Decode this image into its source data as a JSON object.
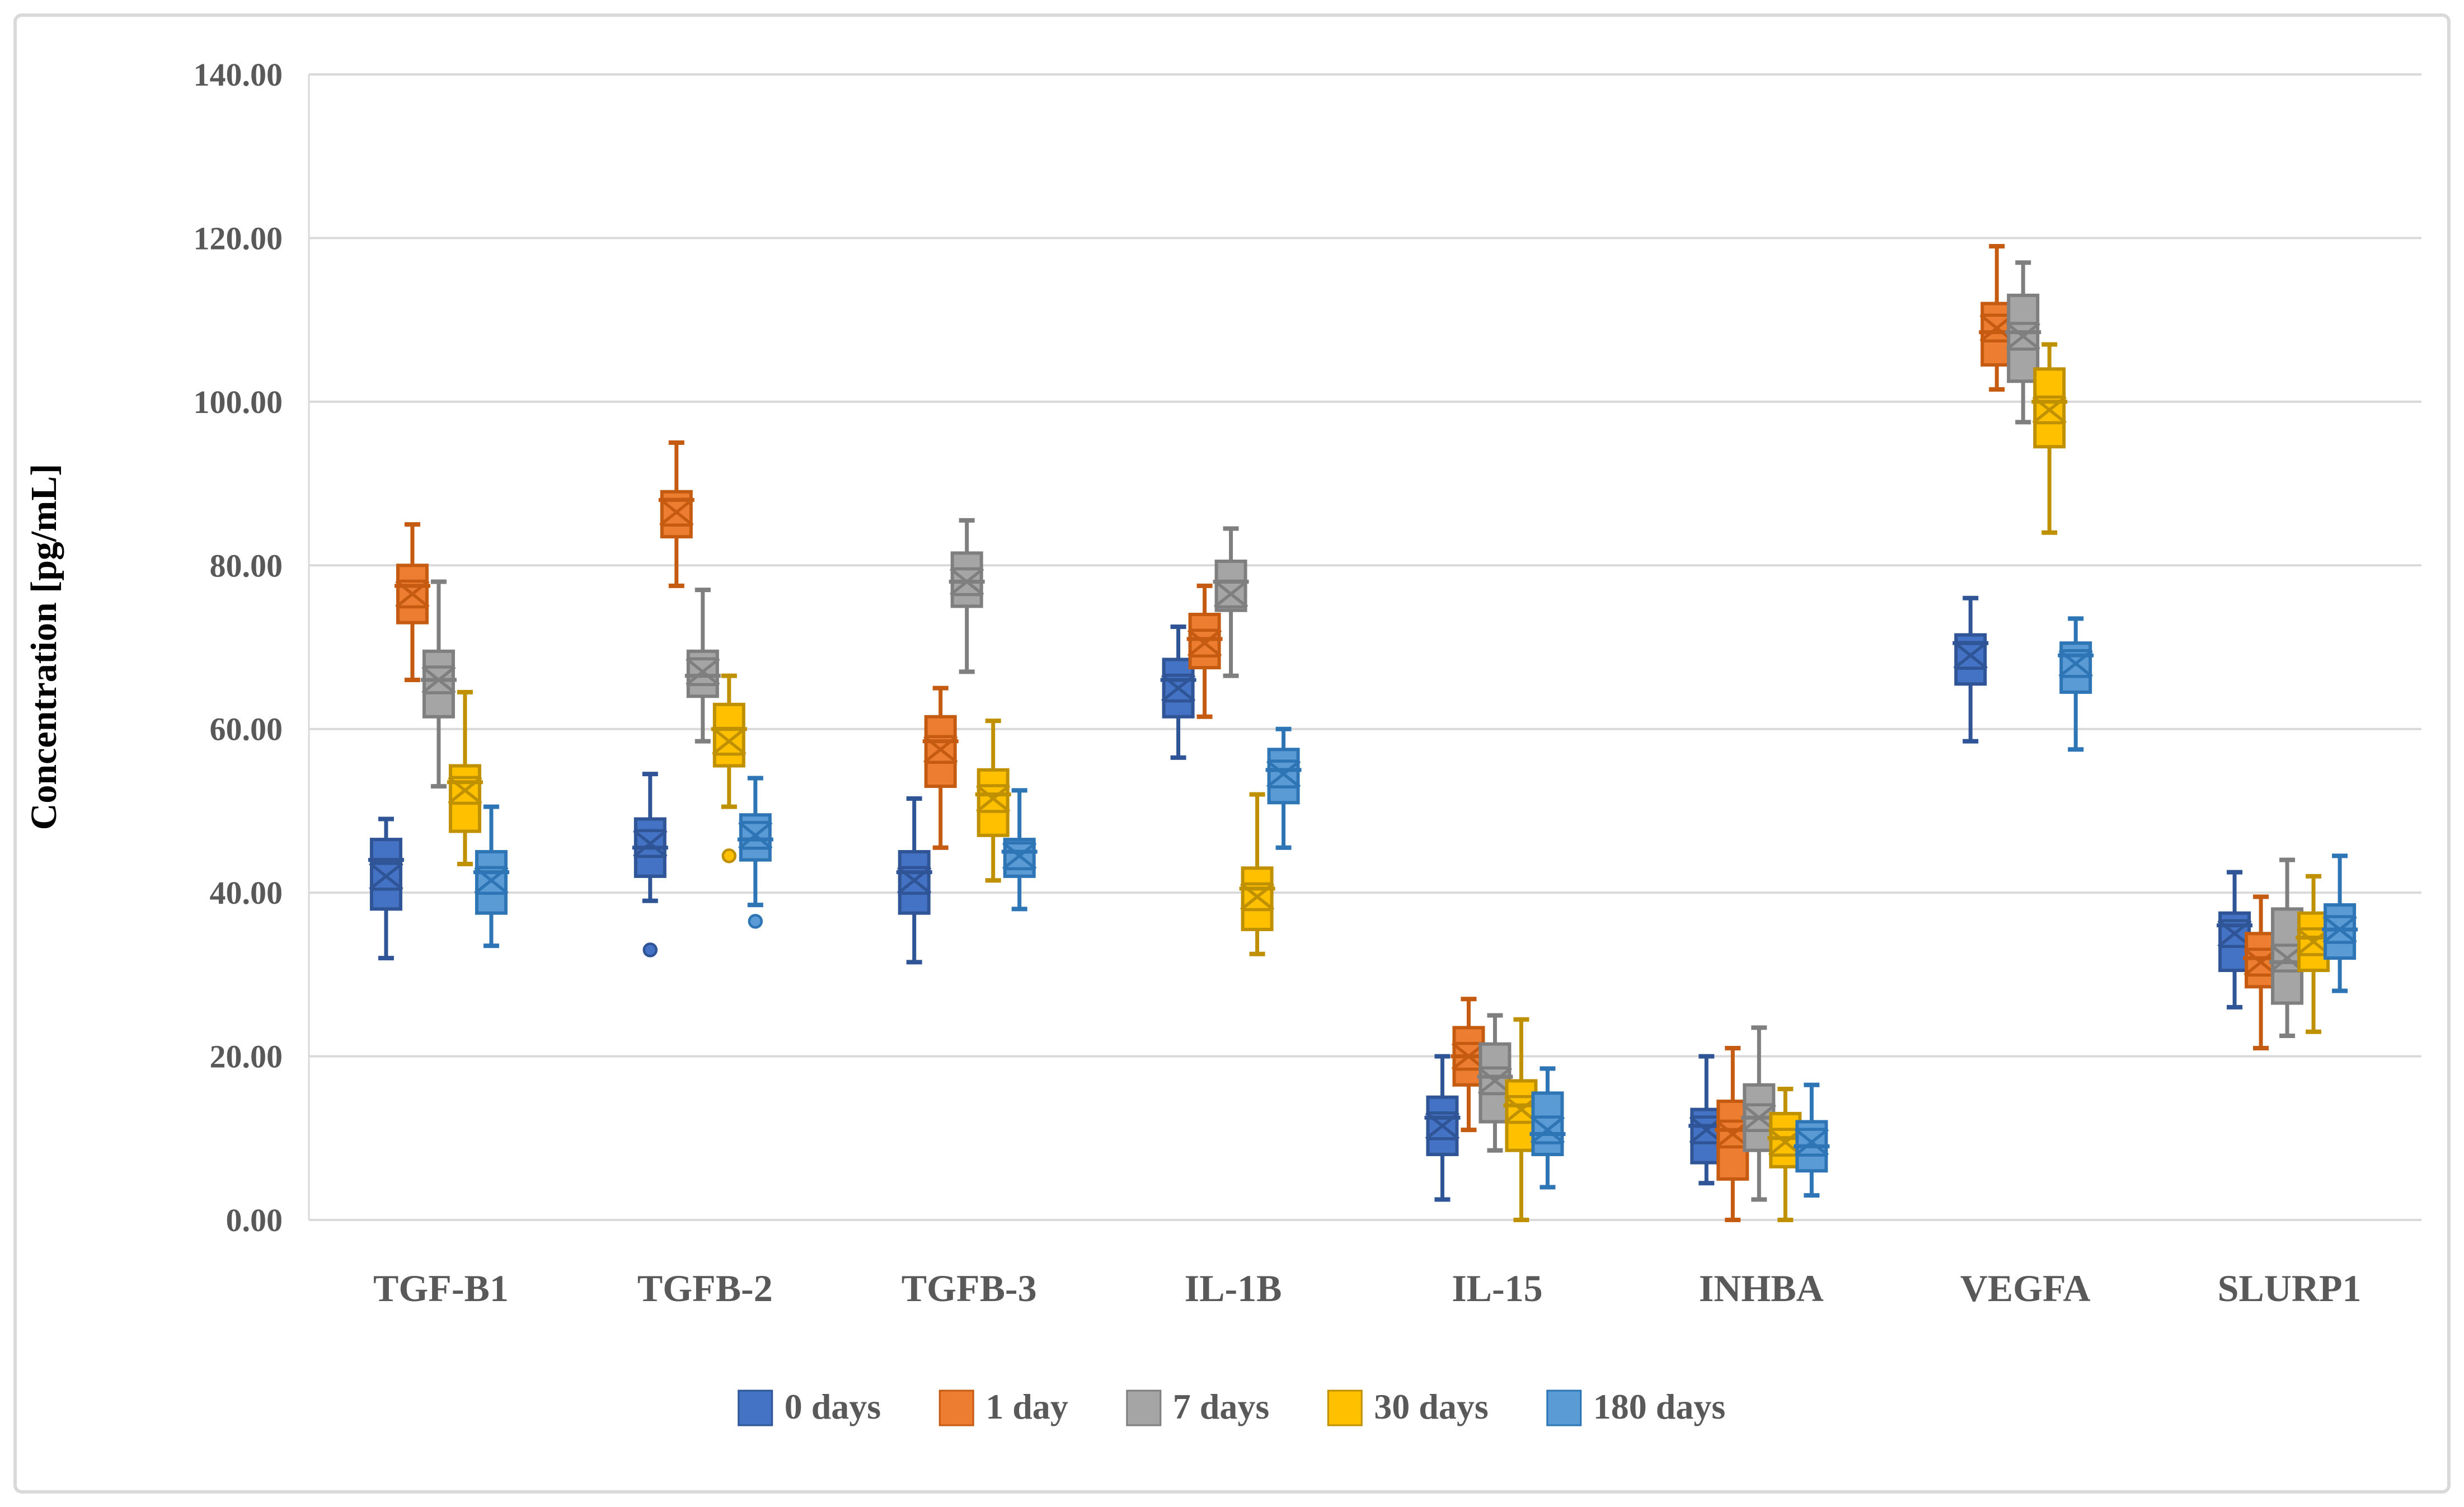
{
  "figure": {
    "background": "#FFFFFF",
    "border_color": "#D9D9D9"
  },
  "y_axis": {
    "title": "Concentration [pg/mL]",
    "ticks": [
      "0.00",
      "20.00",
      "40.00",
      "60.00",
      "80.00",
      "100.00",
      "120.00",
      "140.00"
    ],
    "tick_color": "#595959",
    "title_color": "#3B3B3B"
  },
  "x_axis": {
    "label_color": "#595959"
  },
  "legend": {
    "position": "bottom-center",
    "items": [
      {
        "label": "0 days",
        "fill": "#4472C4",
        "stroke": "#2F5597"
      },
      {
        "label": "1 day",
        "fill": "#ED7D31",
        "stroke": "#C55A11"
      },
      {
        "label": "7 days",
        "fill": "#A5A5A5",
        "stroke": "#7F7F7F"
      },
      {
        "label": "30 days",
        "fill": "#FFC000",
        "stroke": "#BF9000"
      },
      {
        "label": "180 days",
        "fill": "#5B9BD5",
        "stroke": "#2E75B6"
      }
    ]
  },
  "chart_data": {
    "type": "boxplot",
    "title": "",
    "xlabel": "",
    "ylabel": "Concentration [pg/mL]",
    "ylim": [
      0,
      140
    ],
    "ytick_step": 20,
    "grid": "horizontal",
    "gridline_color": "#D9D9D9",
    "legend_position": "bottom",
    "categories": [
      "TGF-B1",
      "TGFB-2",
      "TGFB-3",
      "IL-1B",
      "IL-15",
      "INHBA",
      "VEGFA",
      "SLURP1"
    ],
    "box_format": [
      "min",
      "q1",
      "median",
      "mean",
      "q3",
      "max"
    ],
    "series": [
      {
        "name": "0 days",
        "fill": "#4472C4",
        "stroke": "#2F5597",
        "boxes": [
          [
            32.0,
            38.0,
            44.0,
            42.0,
            46.5,
            49.0
          ],
          [
            39.0,
            42.0,
            45.5,
            46.0,
            49.0,
            54.5
          ],
          [
            31.5,
            37.5,
            42.5,
            41.5,
            45.0,
            51.5
          ],
          [
            56.5,
            61.5,
            66.0,
            65.0,
            68.5,
            72.5
          ],
          [
            2.5,
            8.0,
            12.5,
            11.5,
            15.0,
            20.0
          ],
          [
            4.5,
            7.0,
            11.5,
            11.0,
            13.5,
            20.0
          ],
          [
            58.5,
            65.5,
            70.5,
            69.0,
            71.5,
            76.0
          ],
          [
            26.0,
            30.5,
            36.0,
            35.0,
            37.5,
            42.5
          ]
        ],
        "outliers": {
          "1": [
            33.0
          ]
        }
      },
      {
        "name": "1 day",
        "fill": "#ED7D31",
        "stroke": "#C55A11",
        "boxes": [
          [
            66.0,
            73.0,
            77.5,
            76.5,
            80.0,
            85.0
          ],
          [
            77.5,
            83.5,
            88.0,
            86.5,
            89.0,
            95.0
          ],
          [
            45.5,
            53.0,
            58.5,
            57.5,
            61.5,
            65.0
          ],
          [
            61.5,
            67.5,
            71.0,
            70.5,
            74.0,
            77.5
          ],
          [
            11.0,
            16.5,
            20.0,
            20.0,
            23.5,
            27.0
          ],
          [
            0.0,
            5.0,
            11.0,
            10.5,
            14.5,
            21.0
          ],
          [
            101.5,
            104.5,
            108.5,
            109.0,
            112.0,
            119.0
          ],
          [
            21.0,
            28.5,
            32.0,
            31.5,
            35.0,
            39.5
          ]
        ],
        "outliers": {}
      },
      {
        "name": "7 days",
        "fill": "#A5A5A5",
        "stroke": "#7F7F7F",
        "boxes": [
          [
            53.0,
            61.5,
            66.0,
            66.0,
            69.5,
            78.0
          ],
          [
            58.5,
            64.0,
            66.5,
            67.0,
            69.5,
            77.0
          ],
          [
            67.0,
            75.0,
            78.0,
            78.0,
            81.5,
            85.5
          ],
          [
            66.5,
            74.5,
            78.0,
            76.5,
            80.5,
            84.5
          ],
          [
            8.5,
            12.0,
            17.5,
            17.0,
            21.5,
            25.0
          ],
          [
            2.5,
            8.5,
            12.5,
            12.5,
            16.5,
            23.5
          ],
          [
            97.5,
            102.5,
            108.5,
            108.0,
            113.0,
            117.0
          ],
          [
            22.5,
            26.5,
            31.5,
            32.0,
            38.0,
            44.0
          ]
        ],
        "outliers": {}
      },
      {
        "name": "30 days",
        "fill": "#FFC000",
        "stroke": "#BF9000",
        "boxes": [
          [
            43.5,
            47.5,
            53.5,
            52.5,
            55.5,
            64.5
          ],
          [
            50.5,
            55.5,
            60.0,
            58.5,
            63.0,
            66.5
          ],
          [
            41.5,
            47.0,
            52.0,
            51.5,
            55.0,
            61.0
          ],
          [
            32.5,
            35.5,
            40.5,
            39.5,
            43.0,
            52.0
          ],
          [
            0.0,
            8.5,
            14.0,
            13.5,
            17.0,
            24.5
          ],
          [
            0.0,
            6.5,
            10.0,
            9.5,
            13.0,
            16.0
          ],
          [
            84.0,
            94.5,
            100.0,
            99.0,
            104.0,
            107.0
          ],
          [
            23.0,
            30.5,
            34.5,
            34.0,
            37.5,
            42.0
          ]
        ],
        "outliers": {
          "1": [
            44.5
          ]
        }
      },
      {
        "name": "180 days",
        "fill": "#5B9BD5",
        "stroke": "#2E75B6",
        "boxes": [
          [
            33.5,
            37.5,
            42.5,
            41.5,
            45.0,
            50.5
          ],
          [
            38.5,
            44.0,
            46.5,
            47.0,
            49.5,
            54.0
          ],
          [
            38.0,
            42.0,
            45.0,
            44.5,
            46.5,
            52.5
          ],
          [
            45.5,
            51.0,
            55.0,
            54.5,
            57.5,
            60.0
          ],
          [
            4.0,
            8.0,
            10.5,
            11.0,
            15.5,
            18.5
          ],
          [
            3.0,
            6.0,
            9.0,
            9.5,
            12.0,
            16.5
          ],
          [
            57.5,
            64.5,
            69.0,
            68.0,
            70.5,
            73.5
          ],
          [
            28.0,
            32.0,
            35.5,
            35.5,
            38.5,
            44.5
          ]
        ],
        "outliers": {
          "1": [
            36.5
          ]
        }
      }
    ]
  }
}
